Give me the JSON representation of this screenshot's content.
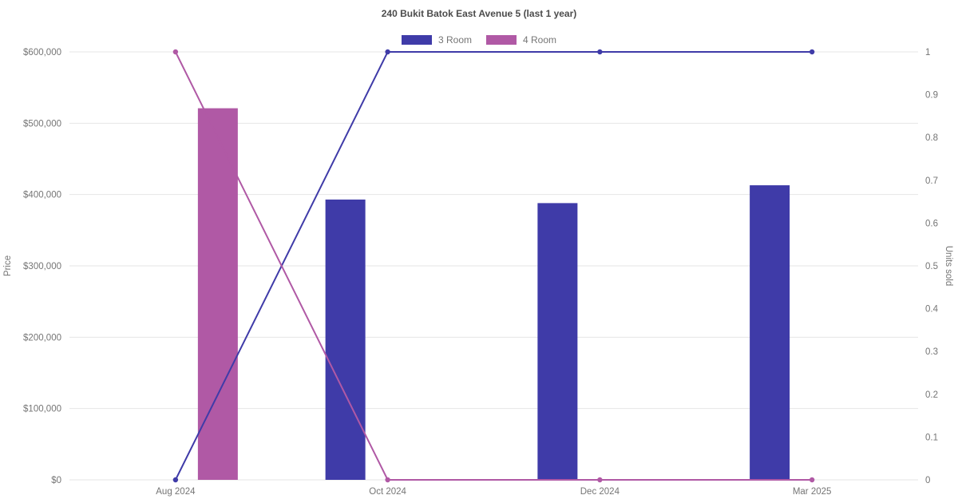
{
  "page": {
    "background": "#ffffff"
  },
  "chart_data": {
    "type": "combo-bar-line",
    "title": "240 Bukit Batok East Avenue 5 (last 1 year)",
    "categories": [
      "Aug 2024",
      "Oct 2024",
      "Dec 2024",
      "Mar 2025"
    ],
    "legend": [
      {
        "label": "3 Room",
        "color": "#3f3ba8"
      },
      {
        "label": "4 Room",
        "color": "#b059a5"
      }
    ],
    "legend_position": "top",
    "grid": "horizontal",
    "left_axis": {
      "label": "Price",
      "min": 0,
      "max": 600000,
      "tick_values": [
        0,
        100000,
        200000,
        300000,
        400000,
        500000,
        600000
      ],
      "tick_labels": [
        "$0",
        "$100,000",
        "$200,000",
        "$300,000",
        "$400,000",
        "$500,000",
        "$600,000"
      ]
    },
    "right_axis": {
      "label": "Units sold",
      "min": 0,
      "max": 1,
      "tick_values": [
        0,
        0.1,
        0.2,
        0.3,
        0.4,
        0.5,
        0.6,
        0.7,
        0.8,
        0.9,
        1
      ],
      "tick_labels": [
        "0",
        "0.1",
        "0.2",
        "0.3",
        "0.4",
        "0.5",
        "0.6",
        "0.7",
        "0.8",
        "0.9",
        "1"
      ]
    },
    "bar_series": [
      {
        "name": "3 Room",
        "axis": "left",
        "color": "#3f3ba8",
        "values": [
          null,
          393000,
          388000,
          413000
        ]
      },
      {
        "name": "4 Room",
        "axis": "left",
        "color": "#b059a5",
        "values": [
          521000,
          null,
          null,
          null
        ]
      }
    ],
    "line_series": [
      {
        "name": "3 Room",
        "axis": "right",
        "color": "#3f3ba8",
        "values": [
          0,
          1,
          1,
          1
        ]
      },
      {
        "name": "4 Room",
        "axis": "right",
        "color": "#b059a5",
        "values": [
          1,
          0,
          0,
          0
        ]
      }
    ],
    "colors": {
      "gridline": "#e6e6e6",
      "tick_text": "#757575",
      "title_text": "#4c4c4c"
    }
  }
}
